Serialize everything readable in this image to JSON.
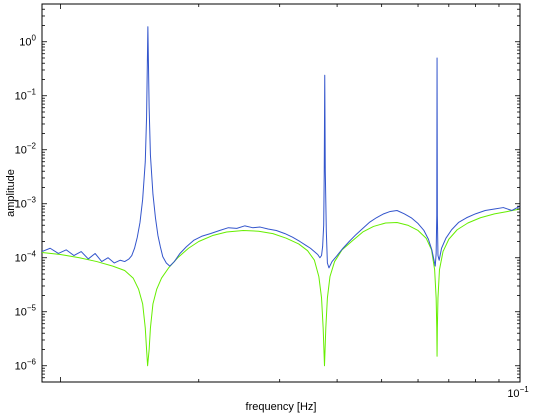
{
  "chart_data": {
    "type": "line",
    "title": "",
    "xlabel": "frequency [Hz]",
    "ylabel": "amplitude",
    "xscale": "log",
    "yscale": "log",
    "xlim": [
      0.00912,
      0.1
    ],
    "ylim": [
      5e-07,
      5
    ],
    "grid": false,
    "legend": "none",
    "x_ticks": [
      {
        "value": 0.1,
        "mantissa": "10",
        "exponent": "−1"
      }
    ],
    "y_ticks": [
      {
        "value": 1,
        "mantissa": "10",
        "exponent": "0"
      },
      {
        "value": 0.1,
        "mantissa": "10",
        "exponent": "−1"
      },
      {
        "value": 0.01,
        "mantissa": "10",
        "exponent": "−2"
      },
      {
        "value": 0.001,
        "mantissa": "10",
        "exponent": "−3"
      },
      {
        "value": 0.0001,
        "mantissa": "10",
        "exponent": "−4"
      },
      {
        "value": 1e-05,
        "mantissa": "10",
        "exponent": "−5"
      },
      {
        "value": 1e-06,
        "mantissa": "10",
        "exponent": "−6"
      }
    ],
    "series": [
      {
        "color": "#3355cc",
        "points": [
          [
            0.00912,
            0.00013
          ],
          [
            0.0095,
            0.00015
          ],
          [
            0.0099,
            0.00012
          ],
          [
            0.0103,
            0.00014
          ],
          [
            0.0107,
            0.00011
          ],
          [
            0.0111,
            0.00013
          ],
          [
            0.0115,
            9.5e-05
          ],
          [
            0.0119,
            0.00012
          ],
          [
            0.0123,
            8.5e-05
          ],
          [
            0.0127,
            0.0001
          ],
          [
            0.0131,
            8e-05
          ],
          [
            0.0135,
            9e-05
          ],
          [
            0.0138,
            8.5e-05
          ],
          [
            0.0141,
            9.5e-05
          ],
          [
            0.0143,
            0.00011
          ],
          [
            0.0145,
            0.00015
          ],
          [
            0.0147,
            0.00024
          ],
          [
            0.0149,
            0.00045
          ],
          [
            0.0151,
            0.0012
          ],
          [
            0.0153,
            0.006
          ],
          [
            0.0154,
            0.04
          ],
          [
            0.0155,
            1.9
          ],
          [
            0.0156,
            0.06
          ],
          [
            0.0157,
            0.008
          ],
          [
            0.0159,
            0.0015
          ],
          [
            0.0161,
            0.00055
          ],
          [
            0.0163,
            0.00026
          ],
          [
            0.0165,
            0.00016
          ],
          [
            0.0167,
            0.000105
          ],
          [
            0.017,
            8e-05
          ],
          [
            0.0173,
            7e-05
          ],
          [
            0.0177,
            8.5e-05
          ],
          [
            0.0182,
            0.00012
          ],
          [
            0.0188,
            0.00016
          ],
          [
            0.0195,
            0.00021
          ],
          [
            0.0203,
            0.00025
          ],
          [
            0.0212,
            0.00028
          ],
          [
            0.0222,
            0.00032
          ],
          [
            0.0232,
            0.00036
          ],
          [
            0.0242,
            0.00035
          ],
          [
            0.0252,
            0.00039
          ],
          [
            0.0262,
            0.00036
          ],
          [
            0.0272,
            0.00037
          ],
          [
            0.0283,
            0.00034
          ],
          [
            0.0295,
            0.00032
          ],
          [
            0.0308,
            0.00028
          ],
          [
            0.032,
            0.00024
          ],
          [
            0.0332,
            0.0002
          ],
          [
            0.0342,
            0.00017
          ],
          [
            0.035,
            0.00015
          ],
          [
            0.0357,
            0.00013
          ],
          [
            0.0363,
            0.000115
          ],
          [
            0.0367,
            0.0001
          ],
          [
            0.037,
            0.00011
          ],
          [
            0.0372,
            0.00016
          ],
          [
            0.0374,
            0.0004
          ],
          [
            0.0375,
            0.0035
          ],
          [
            0.0376,
            0.24
          ],
          [
            0.0377,
            0.004
          ],
          [
            0.0379,
            0.0003
          ],
          [
            0.0381,
            8e-05
          ],
          [
            0.0384,
            6.5e-05
          ],
          [
            0.039,
            8.5e-05
          ],
          [
            0.04,
            0.00011
          ],
          [
            0.0412,
            0.00015
          ],
          [
            0.0425,
            0.0002
          ],
          [
            0.044,
            0.00027
          ],
          [
            0.0455,
            0.00035
          ],
          [
            0.047,
            0.00045
          ],
          [
            0.0487,
            0.00055
          ],
          [
            0.0505,
            0.00065
          ],
          [
            0.0522,
            0.00072
          ],
          [
            0.054,
            0.00075
          ],
          [
            0.056,
            0.00065
          ],
          [
            0.058,
            0.00055
          ],
          [
            0.06,
            0.00043
          ],
          [
            0.0618,
            0.00032
          ],
          [
            0.0632,
            0.00022
          ],
          [
            0.0643,
            0.00014
          ],
          [
            0.065,
            9e-05
          ],
          [
            0.0654,
            7e-05
          ],
          [
            0.0657,
            0.00012
          ],
          [
            0.0659,
            0.0006
          ],
          [
            0.066,
            0.5
          ],
          [
            0.0661,
            0.0006
          ],
          [
            0.0663,
            0.00011
          ],
          [
            0.0667,
            9e-05
          ],
          [
            0.0675,
            0.00015
          ],
          [
            0.069,
            0.00023
          ],
          [
            0.071,
            0.00033
          ],
          [
            0.0735,
            0.00045
          ],
          [
            0.0765,
            0.00055
          ],
          [
            0.08,
            0.00065
          ],
          [
            0.084,
            0.00075
          ],
          [
            0.088,
            0.0008
          ],
          [
            0.092,
            0.00085
          ],
          [
            0.096,
            0.00075
          ],
          [
            0.1,
            0.0009
          ]
        ]
      },
      {
        "color": "#66ee00",
        "points": [
          [
            0.00912,
            0.000125
          ],
          [
            0.01,
            0.000115
          ],
          [
            0.011,
            0.0001
          ],
          [
            0.012,
            8.5e-05
          ],
          [
            0.013,
            7e-05
          ],
          [
            0.0138,
            5.8e-05
          ],
          [
            0.0144,
            4.2e-05
          ],
          [
            0.0148,
            2.6e-05
          ],
          [
            0.0151,
            1.4e-05
          ],
          [
            0.0153,
            5e-06
          ],
          [
            0.0154,
            2e-06
          ],
          [
            0.01548,
            1e-06
          ],
          [
            0.0156,
            2e-06
          ],
          [
            0.0157,
            5e-06
          ],
          [
            0.0159,
            1.4e-05
          ],
          [
            0.0162,
            2.6e-05
          ],
          [
            0.0166,
            4.2e-05
          ],
          [
            0.0172,
            6.5e-05
          ],
          [
            0.018,
            0.0001
          ],
          [
            0.019,
            0.00015
          ],
          [
            0.02,
            0.0002
          ],
          [
            0.0215,
            0.00026
          ],
          [
            0.023,
            0.0003
          ],
          [
            0.025,
            0.00032
          ],
          [
            0.027,
            0.00031
          ],
          [
            0.029,
            0.00028
          ],
          [
            0.031,
            0.00023
          ],
          [
            0.033,
            0.00018
          ],
          [
            0.0345,
            0.000135
          ],
          [
            0.0357,
            9e-05
          ],
          [
            0.0365,
            4.5e-05
          ],
          [
            0.037,
            1.8e-05
          ],
          [
            0.0373,
            5e-06
          ],
          [
            0.03755,
            1e-06
          ],
          [
            0.0378,
            5e-06
          ],
          [
            0.0381,
            1.8e-05
          ],
          [
            0.0386,
            4.5e-05
          ],
          [
            0.0395,
            8.5e-05
          ],
          [
            0.041,
            0.00014
          ],
          [
            0.043,
            0.0002
          ],
          [
            0.0455,
            0.0003
          ],
          [
            0.048,
            0.00038
          ],
          [
            0.051,
            0.00044
          ],
          [
            0.054,
            0.00045
          ],
          [
            0.057,
            0.0004
          ],
          [
            0.06,
            0.00032
          ],
          [
            0.0625,
            0.00023
          ],
          [
            0.0642,
            0.00014
          ],
          [
            0.0652,
            6e-05
          ],
          [
            0.0657,
            1.8e-05
          ],
          [
            0.0659,
            5e-06
          ],
          [
            0.066,
            1.5e-06
          ],
          [
            0.0661,
            5e-06
          ],
          [
            0.0663,
            1.8e-05
          ],
          [
            0.0668,
            6e-05
          ],
          [
            0.068,
            0.00013
          ],
          [
            0.07,
            0.00022
          ],
          [
            0.073,
            0.00033
          ],
          [
            0.077,
            0.00044
          ],
          [
            0.082,
            0.00055
          ],
          [
            0.088,
            0.00065
          ],
          [
            0.094,
            0.00072
          ],
          [
            0.1,
            0.0008
          ]
        ]
      }
    ]
  }
}
